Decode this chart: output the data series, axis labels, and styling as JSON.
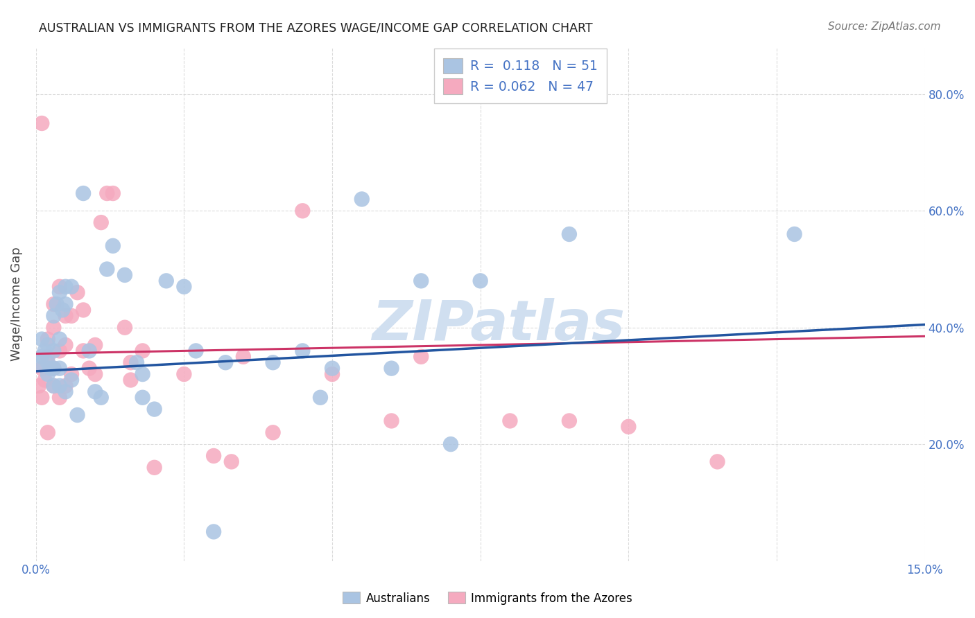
{
  "title": "AUSTRALIAN VS IMMIGRANTS FROM THE AZORES WAGE/INCOME GAP CORRELATION CHART",
  "source": "Source: ZipAtlas.com",
  "ylabel": "Wage/Income Gap",
  "xlabel": "",
  "xlim": [
    0.0,
    0.15
  ],
  "ylim": [
    0.0,
    0.88
  ],
  "yticks": [
    0.2,
    0.4,
    0.6,
    0.8
  ],
  "ytick_labels": [
    "20.0%",
    "40.0%",
    "60.0%",
    "80.0%"
  ],
  "xticks": [
    0.0,
    0.025,
    0.05,
    0.075,
    0.1,
    0.125,
    0.15
  ],
  "xtick_labels": [
    "0.0%",
    "",
    "",
    "",
    "",
    "",
    "15.0%"
  ],
  "blue_color": "#aac4e2",
  "pink_color": "#f5aabf",
  "blue_line_color": "#2255a0",
  "pink_line_color": "#cc3366",
  "R_blue": 0.118,
  "N_blue": 51,
  "R_pink": 0.062,
  "N_pink": 47,
  "watermark": "ZIPatlas",
  "watermark_color": "#d0dff0",
  "legend_label_blue": "Australians",
  "legend_label_pink": "Immigrants from the Azores",
  "blue_x": [
    0.0005,
    0.001,
    0.001,
    0.0015,
    0.002,
    0.002,
    0.002,
    0.0025,
    0.003,
    0.003,
    0.003,
    0.003,
    0.0035,
    0.004,
    0.004,
    0.004,
    0.004,
    0.0045,
    0.005,
    0.005,
    0.005,
    0.006,
    0.006,
    0.007,
    0.008,
    0.009,
    0.01,
    0.011,
    0.012,
    0.013,
    0.015,
    0.017,
    0.018,
    0.018,
    0.02,
    0.022,
    0.025,
    0.027,
    0.03,
    0.032,
    0.04,
    0.045,
    0.048,
    0.05,
    0.055,
    0.06,
    0.065,
    0.07,
    0.075,
    0.09,
    0.128
  ],
  "blue_y": [
    0.34,
    0.35,
    0.38,
    0.36,
    0.32,
    0.34,
    0.37,
    0.33,
    0.3,
    0.33,
    0.36,
    0.42,
    0.44,
    0.3,
    0.33,
    0.38,
    0.46,
    0.43,
    0.29,
    0.44,
    0.47,
    0.31,
    0.47,
    0.25,
    0.63,
    0.36,
    0.29,
    0.28,
    0.5,
    0.54,
    0.49,
    0.34,
    0.28,
    0.32,
    0.26,
    0.48,
    0.47,
    0.36,
    0.05,
    0.34,
    0.34,
    0.36,
    0.28,
    0.33,
    0.62,
    0.33,
    0.48,
    0.2,
    0.48,
    0.56,
    0.56
  ],
  "pink_x": [
    0.0005,
    0.001,
    0.001,
    0.001,
    0.0015,
    0.002,
    0.002,
    0.002,
    0.003,
    0.003,
    0.003,
    0.003,
    0.004,
    0.004,
    0.004,
    0.005,
    0.005,
    0.005,
    0.006,
    0.006,
    0.007,
    0.008,
    0.008,
    0.009,
    0.01,
    0.01,
    0.011,
    0.012,
    0.013,
    0.015,
    0.016,
    0.016,
    0.018,
    0.02,
    0.025,
    0.03,
    0.033,
    0.035,
    0.04,
    0.045,
    0.05,
    0.06,
    0.065,
    0.08,
    0.09,
    0.1,
    0.115
  ],
  "pink_y": [
    0.3,
    0.28,
    0.33,
    0.75,
    0.31,
    0.22,
    0.35,
    0.38,
    0.3,
    0.33,
    0.4,
    0.44,
    0.28,
    0.36,
    0.47,
    0.3,
    0.42,
    0.37,
    0.32,
    0.42,
    0.46,
    0.36,
    0.43,
    0.33,
    0.32,
    0.37,
    0.58,
    0.63,
    0.63,
    0.4,
    0.31,
    0.34,
    0.36,
    0.16,
    0.32,
    0.18,
    0.17,
    0.35,
    0.22,
    0.6,
    0.32,
    0.24,
    0.35,
    0.24,
    0.24,
    0.23,
    0.17
  ]
}
